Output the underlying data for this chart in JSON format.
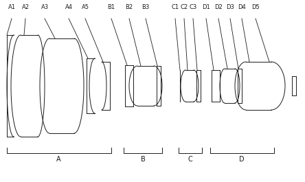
{
  "bg_color": "#ffffff",
  "line_color": "#1a1a1a",
  "figsize": [
    4.44,
    2.65
  ],
  "dpi": 100,
  "xlim": [
    0,
    444
  ],
  "ylim": [
    0,
    265
  ]
}
